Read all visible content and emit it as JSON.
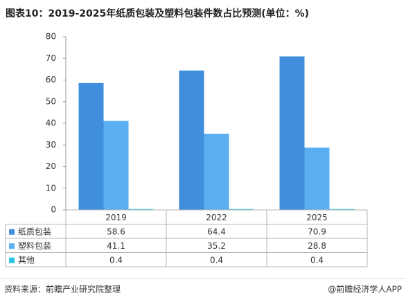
{
  "title": "图表10：2019-2025年纸质包装及塑料包装件数占比预测(单位：%)",
  "chart_data": {
    "type": "bar",
    "categories": [
      "2019",
      "2022",
      "2025"
    ],
    "series": [
      {
        "name": "纸质包装",
        "color": "#3f8fdc",
        "values": [
          58.6,
          64.4,
          70.9
        ]
      },
      {
        "name": "塑料包装",
        "color": "#5aaef2",
        "values": [
          41.1,
          35.2,
          28.8
        ]
      },
      {
        "name": "其他",
        "color": "#27c5e8",
        "values": [
          0.4,
          0.4,
          0.4
        ]
      }
    ],
    "ylim": [
      0,
      80
    ],
    "yticks": [
      0,
      10,
      20,
      30,
      40,
      50,
      60,
      70,
      80
    ],
    "grid": false,
    "data_table": true
  },
  "footer": {
    "source": "资料来源：前瞻产业研究院整理",
    "brand": "@前瞻经济学人APP"
  }
}
